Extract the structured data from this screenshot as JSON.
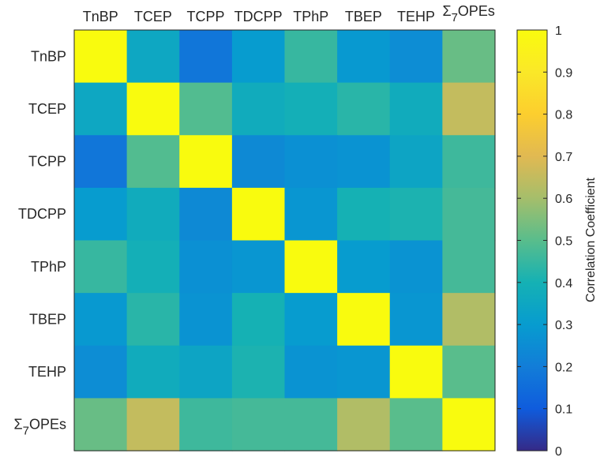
{
  "chart_data": {
    "type": "heatmap",
    "x_labels": [
      "TnBP",
      "TCEP",
      "TCPP",
      "TDCPP",
      "TPhP",
      "TBEP",
      "TEHP",
      "Σ7OPEs"
    ],
    "y_labels": [
      "TnBP",
      "TCEP",
      "TCPP",
      "TDCPP",
      "TPhP",
      "TBEP",
      "TEHP",
      "Σ7OPEs"
    ],
    "values": [
      [
        1.0,
        0.35,
        0.18,
        0.3,
        0.45,
        0.29,
        0.25,
        0.52
      ],
      [
        0.35,
        1.0,
        0.49,
        0.37,
        0.39,
        0.43,
        0.37,
        0.65
      ],
      [
        0.18,
        0.49,
        1.0,
        0.24,
        0.26,
        0.27,
        0.34,
        0.46
      ],
      [
        0.3,
        0.37,
        0.24,
        1.0,
        0.28,
        0.4,
        0.41,
        0.47
      ],
      [
        0.45,
        0.39,
        0.26,
        0.28,
        1.0,
        0.3,
        0.27,
        0.47
      ],
      [
        0.29,
        0.43,
        0.27,
        0.4,
        0.3,
        1.0,
        0.28,
        0.62
      ],
      [
        0.25,
        0.37,
        0.34,
        0.41,
        0.27,
        0.28,
        1.0,
        0.5
      ],
      [
        0.52,
        0.65,
        0.46,
        0.47,
        0.47,
        0.62,
        0.5,
        1.0
      ]
    ],
    "colorbar": {
      "label": "Correlation Coefficient",
      "min": 0,
      "max": 1,
      "ticks": [
        "0",
        "0.1",
        "0.2",
        "0.3",
        "0.4",
        "0.5",
        "0.6",
        "0.7",
        "0.8",
        "0.9",
        "1"
      ],
      "colormap": "parula"
    },
    "x_axis_position": "top"
  }
}
